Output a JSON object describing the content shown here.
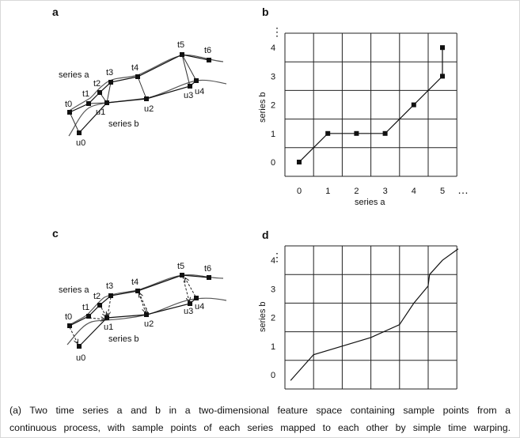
{
  "panels": {
    "a": {
      "label": "a",
      "series_a_label": "series a",
      "series_b_label": "series b",
      "t_points": [
        "t0",
        "t1",
        "t2",
        "t3",
        "t4",
        "t5",
        "t6"
      ],
      "u_points": [
        "u0",
        "u1",
        "u2",
        "u3",
        "u4"
      ],
      "mapping": [
        [
          0,
          0
        ],
        [
          1,
          1
        ],
        [
          2,
          1
        ],
        [
          3,
          1
        ],
        [
          4,
          2
        ],
        [
          5,
          3
        ],
        [
          5,
          4
        ]
      ]
    },
    "b": {
      "label": "b",
      "xlabel": "series a",
      "ylabel": "series b",
      "xticks": [
        "0",
        "1",
        "2",
        "3",
        "4",
        "5"
      ],
      "yticks": [
        "0",
        "1",
        "2",
        "3",
        "4"
      ],
      "path": [
        [
          0,
          0
        ],
        [
          1,
          1
        ],
        [
          2,
          1
        ],
        [
          3,
          1
        ],
        [
          4,
          2
        ],
        [
          5,
          3
        ],
        [
          5,
          4
        ]
      ]
    },
    "c": {
      "label": "c",
      "series_a_label": "series a",
      "series_b_label": "series b",
      "t_points": [
        "t0",
        "t1",
        "t2",
        "t3",
        "t4",
        "t5",
        "t6"
      ],
      "u_points": [
        "u0",
        "u1",
        "u2",
        "u3",
        "u4"
      ]
    },
    "d": {
      "label": "d",
      "ylabel": "series b",
      "yticks": [
        "0",
        "1",
        "2",
        "3",
        "4"
      ],
      "path": [
        [
          -0.3,
          -0.2
        ],
        [
          0.5,
          0.7
        ],
        [
          1.5,
          1.0
        ],
        [
          2.5,
          1.3
        ],
        [
          3.5,
          1.75
        ],
        [
          4,
          2.5
        ],
        [
          4.5,
          3.1
        ],
        [
          4.55,
          3.5
        ],
        [
          5,
          4
        ],
        [
          5.55,
          4.4
        ]
      ]
    }
  },
  "ellipsis": "⋮",
  "ellipsis_h": "…",
  "caption": {
    "line1": "(a) Two time series a and b in a two-dimensional feature space containing sample points from a",
    "line2": "continuous process, with sample points of each series mapped to each other by simple time warping."
  }
}
